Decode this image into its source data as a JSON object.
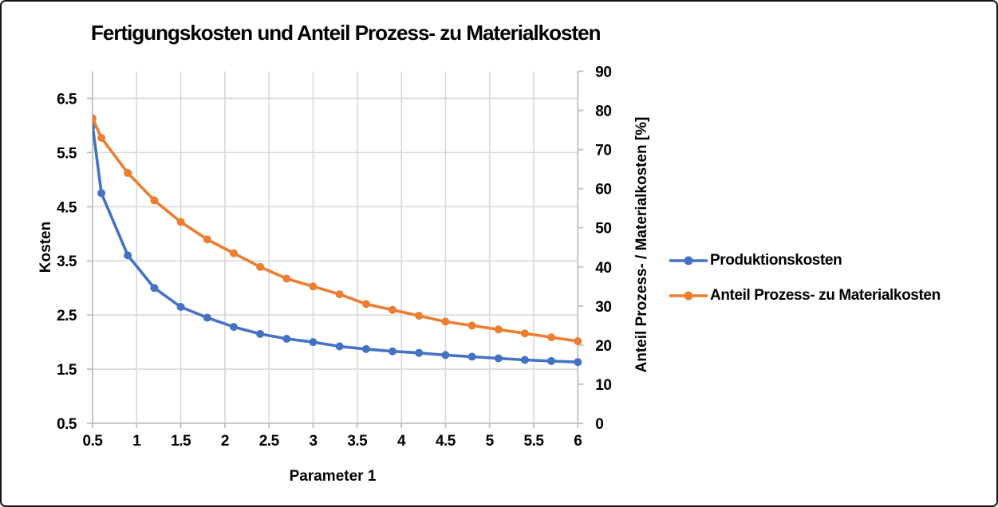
{
  "chart_data": {
    "type": "line",
    "title": "Fertigungskosten und Anteil Prozess- zu Materialkosten",
    "xlabel": "Parameter 1",
    "ylabel_left": "Kosten",
    "ylabel_right": "Anteil Prozess- / Materialkosten [%]",
    "x": [
      0.5,
      0.6,
      0.9,
      1.2,
      1.5,
      1.8,
      2.1,
      2.4,
      2.7,
      3.0,
      3.3,
      3.6,
      3.9,
      4.2,
      4.5,
      4.8,
      5.1,
      5.4,
      5.7,
      6.0
    ],
    "series": [
      {
        "name": "Produktionskosten",
        "axis": "left",
        "color": "#4472C4",
        "marker": "circle",
        "values": [
          6.0,
          4.75,
          3.6,
          3.0,
          2.65,
          2.45,
          2.28,
          2.15,
          2.06,
          2.0,
          1.92,
          1.87,
          1.83,
          1.8,
          1.76,
          1.73,
          1.7,
          1.67,
          1.65,
          1.63
        ]
      },
      {
        "name": "Anteil Prozess- zu Materialkosten",
        "axis": "right",
        "color": "#ED7D31",
        "marker": "circle",
        "values": [
          78,
          73,
          64,
          57,
          51.5,
          47,
          43.5,
          40,
          37,
          35,
          33,
          30.5,
          29,
          27.5,
          26,
          25,
          24,
          23,
          22,
          21
        ]
      }
    ],
    "axes": {
      "x": {
        "min": 0.5,
        "max": 6.0,
        "ticks": [
          0.5,
          1,
          1.5,
          2,
          2.5,
          3,
          3.5,
          4,
          4.5,
          5,
          5.5,
          6
        ],
        "tick_labels": [
          "0.5",
          "1",
          "1.5",
          "2",
          "2.5",
          "3",
          "3.5",
          "4",
          "4.5",
          "5",
          "5.5",
          "6"
        ]
      },
      "left": {
        "min": 0.5,
        "max": 7.0,
        "ticks": [
          0.5,
          1.5,
          2.5,
          3.5,
          4.5,
          5.5,
          6.5
        ],
        "tick_labels": [
          "0.5",
          "1.5",
          "2.5",
          "3.5",
          "4.5",
          "5.5",
          "6.5"
        ]
      },
      "right": {
        "min": 0,
        "max": 90,
        "ticks": [
          0,
          10,
          20,
          30,
          40,
          50,
          60,
          70,
          80,
          90
        ],
        "tick_labels": [
          "0",
          "10",
          "20",
          "30",
          "40",
          "50",
          "60",
          "70",
          "80",
          "90"
        ]
      }
    },
    "grid": true,
    "legend_position": "right",
    "colors": {
      "grid": "#D9D9D9",
      "axis": "#BFBFBF",
      "text": "#000000",
      "background": "#FFFFFF"
    }
  }
}
